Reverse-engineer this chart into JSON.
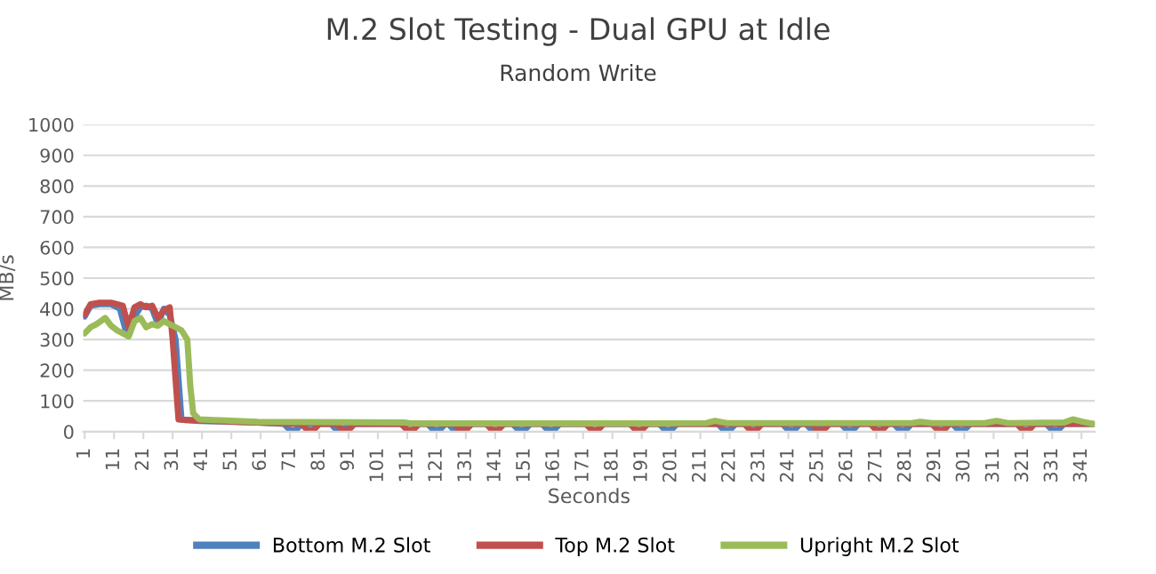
{
  "chart_data": {
    "type": "line",
    "title": "M.2 Slot Testing - Dual GPU at Idle",
    "subtitle": "Random Write",
    "xlabel": "Seconds",
    "ylabel": "MB/s",
    "xlim": [
      0.5,
      345.5
    ],
    "xticks": [
      1,
      11,
      21,
      31,
      41,
      51,
      61,
      71,
      81,
      91,
      101,
      111,
      121,
      131,
      141,
      151,
      161,
      171,
      181,
      191,
      201,
      211,
      221,
      231,
      241,
      251,
      261,
      271,
      281,
      291,
      301,
      311,
      321,
      331,
      341
    ],
    "ylim": [
      0,
      1000
    ],
    "yticks": [
      0,
      100,
      200,
      300,
      400,
      500,
      600,
      700,
      800,
      900,
      1000
    ],
    "grid": "y",
    "legend": "bottom",
    "line_style": "solid",
    "marker": "none",
    "series": [
      {
        "name": "Bottom M.2 Slot",
        "color": "#4f81bd",
        "x": [
          1,
          3,
          6,
          10,
          13,
          15,
          17,
          20,
          22,
          24,
          26,
          28,
          30,
          32,
          34,
          40,
          60,
          69,
          71,
          73,
          75,
          85,
          87,
          89,
          91,
          118,
          120,
          122,
          124,
          125,
          127,
          129,
          131,
          147,
          149,
          151,
          153,
          157,
          159,
          161,
          163,
          197,
          199,
          201,
          203,
          217,
          219,
          221,
          223,
          239,
          241,
          243,
          245,
          247,
          249,
          251,
          253,
          259,
          261,
          263,
          265,
          277,
          279,
          281,
          283,
          297,
          299,
          301,
          303,
          329,
          331,
          333,
          335,
          345
        ],
        "values": [
          375,
          410,
          415,
          415,
          400,
          330,
          360,
          405,
          410,
          400,
          350,
          400,
          380,
          300,
          40,
          35,
          30,
          25,
          5,
          5,
          25,
          25,
          5,
          5,
          25,
          25,
          5,
          5,
          25,
          25,
          5,
          5,
          25,
          25,
          5,
          5,
          25,
          25,
          5,
          5,
          25,
          25,
          5,
          5,
          25,
          25,
          5,
          5,
          25,
          25,
          5,
          5,
          25,
          25,
          5,
          5,
          25,
          25,
          5,
          5,
          25,
          25,
          5,
          5,
          25,
          25,
          5,
          5,
          25,
          25,
          5,
          5,
          25,
          25
        ]
      },
      {
        "name": "Top M.2 Slot",
        "color": "#c0504d",
        "x": [
          1,
          3,
          6,
          10,
          14,
          16,
          18,
          20,
          22,
          24,
          26,
          28,
          30,
          31,
          33,
          35,
          45,
          60,
          75,
          77,
          79,
          81,
          87,
          89,
          91,
          93,
          109,
          111,
          113,
          115,
          127,
          129,
          131,
          133,
          138,
          140,
          142,
          144,
          172,
          174,
          176,
          178,
          187,
          189,
          191,
          193,
          226,
          228,
          230,
          232,
          249,
          251,
          253,
          255,
          269,
          271,
          273,
          275,
          290,
          292,
          294,
          296,
          319,
          321,
          323,
          325,
          345
        ],
        "values": [
          380,
          415,
          420,
          420,
          410,
          340,
          405,
          415,
          405,
          410,
          370,
          395,
          405,
          300,
          40,
          38,
          35,
          30,
          25,
          5,
          5,
          25,
          25,
          5,
          5,
          25,
          25,
          5,
          5,
          25,
          25,
          5,
          5,
          25,
          25,
          5,
          5,
          25,
          25,
          5,
          5,
          25,
          25,
          5,
          5,
          25,
          25,
          5,
          5,
          25,
          25,
          5,
          5,
          25,
          25,
          5,
          5,
          25,
          25,
          5,
          5,
          25,
          25,
          5,
          5,
          25,
          25
        ]
      },
      {
        "name": "Upright M.2 Slot",
        "color": "#9bbb59",
        "x": [
          1,
          3,
          5,
          8,
          10,
          12,
          14,
          16,
          18,
          20,
          22,
          24,
          26,
          28,
          30,
          32,
          34,
          36,
          37,
          38,
          40,
          45,
          60,
          110,
          112,
          150,
          200,
          213,
          216,
          220,
          260,
          283,
          286,
          290,
          308,
          312,
          316,
          335,
          338,
          341,
          345
        ],
        "values": [
          320,
          340,
          350,
          370,
          345,
          330,
          320,
          310,
          360,
          370,
          340,
          350,
          345,
          360,
          350,
          340,
          330,
          300,
          150,
          60,
          40,
          38,
          32,
          30,
          27,
          27,
          27,
          28,
          35,
          28,
          28,
          28,
          32,
          28,
          28,
          35,
          28,
          30,
          40,
          33,
          25
        ]
      }
    ]
  }
}
